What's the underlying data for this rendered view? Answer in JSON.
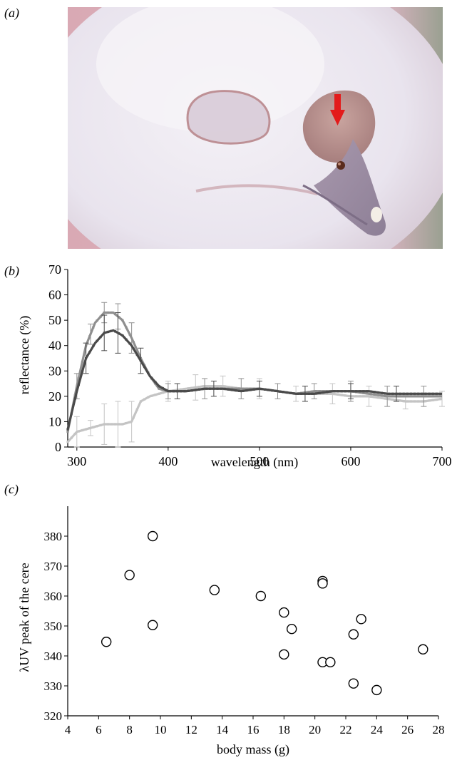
{
  "panels": {
    "a": {
      "label": "(a)"
    },
    "b": {
      "label": "(b)"
    },
    "c": {
      "label": "(c)"
    }
  },
  "colors": {
    "series_dark": "#4a4a4a",
    "series_mid": "#8f8f8f",
    "series_light": "#c4c4c4",
    "arrow": "#e31b1b"
  },
  "chart_data": [
    {
      "type": "line",
      "panel": "b",
      "xlabel": "wavelength (nm)",
      "ylabel": "reflectance (%)",
      "xlim": [
        290,
        700
      ],
      "ylim": [
        0,
        70
      ],
      "xticks": [
        300,
        400,
        500,
        600,
        700
      ],
      "yticks": [
        0,
        10,
        20,
        30,
        40,
        50,
        60,
        70
      ],
      "grid": false,
      "series": [
        {
          "color": "#4a4a4a",
          "x": [
            290,
            300,
            310,
            320,
            330,
            340,
            350,
            360,
            370,
            380,
            390,
            400,
            420,
            440,
            460,
            480,
            500,
            520,
            540,
            560,
            580,
            600,
            620,
            640,
            660,
            680,
            700
          ],
          "y": [
            7,
            22,
            35,
            41,
            45,
            46,
            44,
            40,
            34,
            28,
            24,
            22,
            22,
            23,
            23,
            22,
            23,
            22,
            21,
            21,
            22,
            22,
            22,
            21,
            21,
            21,
            21
          ],
          "error_x": [
            310,
            330,
            345,
            370,
            410,
            450,
            500,
            550,
            600,
            650
          ],
          "error_y": [
            6,
            7,
            8,
            5,
            3,
            3,
            3,
            3,
            3,
            3
          ]
        },
        {
          "color": "#8f8f8f",
          "x": [
            290,
            300,
            310,
            320,
            330,
            340,
            350,
            360,
            370,
            380,
            390,
            400,
            420,
            440,
            460,
            480,
            500,
            520,
            540,
            560,
            580,
            600,
            620,
            640,
            660,
            680,
            700
          ],
          "y": [
            6,
            24,
            40,
            49,
            53,
            53,
            50,
            43,
            35,
            28,
            23,
            22,
            22,
            23,
            23,
            23,
            23,
            22,
            21,
            22,
            22,
            22,
            21,
            20,
            20,
            20,
            20
          ],
          "error_x": [
            300,
            315,
            330,
            345,
            360,
            400,
            440,
            480,
            520,
            560,
            600,
            640,
            680
          ],
          "error_y": [
            5,
            4,
            4,
            5,
            6,
            3,
            4,
            4,
            3,
            3,
            4,
            4,
            4
          ]
        },
        {
          "color": "#c4c4c4",
          "x": [
            290,
            300,
            310,
            320,
            330,
            340,
            350,
            360,
            365,
            370,
            380,
            390,
            400,
            420,
            440,
            460,
            480,
            500,
            520,
            540,
            560,
            580,
            600,
            620,
            640,
            660,
            680,
            700
          ],
          "y": [
            2,
            6,
            7,
            8,
            9,
            9,
            9,
            10,
            14,
            18,
            20,
            21,
            22,
            23,
            24,
            24,
            23,
            23,
            22,
            21,
            21,
            21,
            20,
            20,
            19,
            18,
            18,
            19
          ],
          "error_x": [
            300,
            315,
            330,
            345,
            360,
            400,
            430,
            460,
            500,
            540,
            580,
            620,
            660,
            700
          ],
          "error_y": [
            6,
            3,
            8,
            9,
            8,
            4,
            5,
            4,
            4,
            3,
            4,
            4,
            3,
            3
          ]
        }
      ]
    },
    {
      "type": "scatter",
      "panel": "c",
      "xlabel": "body mass (g)",
      "ylabel": "λUV peak of the cere",
      "xlim": [
        4,
        28
      ],
      "ylim": [
        320,
        390
      ],
      "xticks": [
        4,
        6,
        8,
        10,
        12,
        14,
        16,
        18,
        20,
        22,
        24,
        26,
        28
      ],
      "yticks": [
        320,
        330,
        340,
        350,
        360,
        370,
        380
      ],
      "grid": false,
      "points": [
        {
          "x": 6.5,
          "y": 344.7
        },
        {
          "x": 8.0,
          "y": 367.0
        },
        {
          "x": 9.5,
          "y": 380.0
        },
        {
          "x": 9.5,
          "y": 350.3
        },
        {
          "x": 13.5,
          "y": 362.0
        },
        {
          "x": 16.5,
          "y": 360.0
        },
        {
          "x": 18.0,
          "y": 354.5
        },
        {
          "x": 18.0,
          "y": 340.5
        },
        {
          "x": 18.5,
          "y": 349.0
        },
        {
          "x": 20.5,
          "y": 365.0
        },
        {
          "x": 20.5,
          "y": 364.2
        },
        {
          "x": 20.5,
          "y": 337.9
        },
        {
          "x": 21.0,
          "y": 337.9
        },
        {
          "x": 22.5,
          "y": 347.2
        },
        {
          "x": 22.5,
          "y": 330.8
        },
        {
          "x": 23.0,
          "y": 352.3
        },
        {
          "x": 24.0,
          "y": 328.6
        },
        {
          "x": 27.0,
          "y": 342.2
        }
      ]
    }
  ]
}
